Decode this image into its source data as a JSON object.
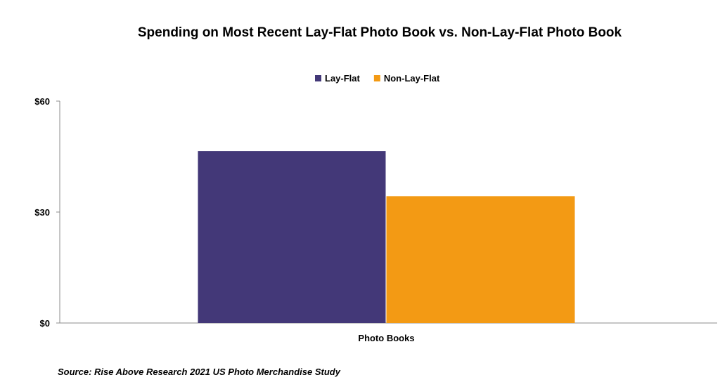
{
  "chart_data": {
    "type": "bar",
    "title": "Spending on Most Recent Lay-Flat Photo Book vs. Non-Lay-Flat Photo Book",
    "xlabel": "",
    "ylabel": "",
    "categories": [
      "Photo Books"
    ],
    "series": [
      {
        "name": "Lay-Flat",
        "values": [
          46.5
        ],
        "color": "#433878"
      },
      {
        "name": "Non-Lay-Flat",
        "values": [
          34.3
        ],
        "color": "#F39A14"
      }
    ],
    "ylim": [
      0,
      60
    ],
    "yticks": [
      0,
      30,
      60
    ],
    "ytick_labels": [
      "$0",
      "$30",
      "$60"
    ],
    "legend_position": "top",
    "grid": false
  },
  "source": "Source: Rise Above Research 2021 US Photo Merchandise Study"
}
